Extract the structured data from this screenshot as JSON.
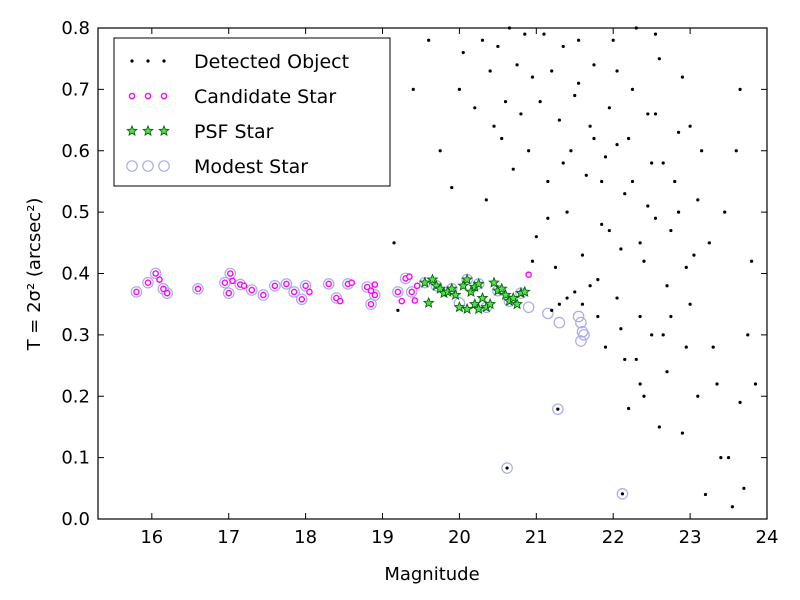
{
  "chart_data": {
    "type": "scatter",
    "xlabel": "Magnitude",
    "ylabel": "T = 2σ² (arcsec²)",
    "xlim": [
      15.3,
      24.0
    ],
    "ylim": [
      0.0,
      0.8
    ],
    "xticks": [
      16,
      17,
      18,
      19,
      20,
      21,
      22,
      23,
      24
    ],
    "yticks": [
      0.0,
      0.1,
      0.2,
      0.3,
      0.4,
      0.5,
      0.6,
      0.7,
      0.8
    ],
    "legend_position": "top-left",
    "grid": false,
    "series": [
      {
        "name": "Detected Object",
        "marker": "dot",
        "color": "#000000",
        "points": [
          [
            19.15,
            0.45
          ],
          [
            19.2,
            0.34
          ],
          [
            19.4,
            0.7
          ],
          [
            19.6,
            0.78
          ],
          [
            19.75,
            0.6
          ],
          [
            19.9,
            0.54
          ],
          [
            20.0,
            0.7
          ],
          [
            20.05,
            0.76
          ],
          [
            20.2,
            0.67
          ],
          [
            20.3,
            0.78
          ],
          [
            20.35,
            0.52
          ],
          [
            20.4,
            0.73
          ],
          [
            20.45,
            0.64
          ],
          [
            20.5,
            0.77
          ],
          [
            20.55,
            0.62
          ],
          [
            20.6,
            0.68
          ],
          [
            20.65,
            0.8
          ],
          [
            20.7,
            0.57
          ],
          [
            20.75,
            0.74
          ],
          [
            20.8,
            0.66
          ],
          [
            20.85,
            0.79
          ],
          [
            20.9,
            0.6
          ],
          [
            20.95,
            0.72
          ],
          [
            21.0,
            0.46
          ],
          [
            21.05,
            0.68
          ],
          [
            21.1,
            0.79
          ],
          [
            21.15,
            0.55
          ],
          [
            21.2,
            0.73
          ],
          [
            21.25,
            0.41
          ],
          [
            21.3,
            0.65
          ],
          [
            21.35,
            0.77
          ],
          [
            21.4,
            0.5
          ],
          [
            21.45,
            0.6
          ],
          [
            21.5,
            0.69
          ],
          [
            21.55,
            0.78
          ],
          [
            21.6,
            0.43
          ],
          [
            21.65,
            0.56
          ],
          [
            21.7,
            0.64
          ],
          [
            21.75,
            0.74
          ],
          [
            21.8,
            0.39
          ],
          [
            21.85,
            0.48
          ],
          [
            21.9,
            0.59
          ],
          [
            21.95,
            0.67
          ],
          [
            22.0,
            0.78
          ],
          [
            22.05,
            0.36
          ],
          [
            22.1,
            0.44
          ],
          [
            22.15,
            0.53
          ],
          [
            22.2,
            0.62
          ],
          [
            22.25,
            0.7
          ],
          [
            22.3,
            0.8
          ],
          [
            22.35,
            0.33
          ],
          [
            22.4,
            0.42
          ],
          [
            22.45,
            0.51
          ],
          [
            22.5,
            0.58
          ],
          [
            22.55,
            0.66
          ],
          [
            22.6,
            0.75
          ],
          [
            22.65,
            0.3
          ],
          [
            22.7,
            0.38
          ],
          [
            22.75,
            0.47
          ],
          [
            22.8,
            0.55
          ],
          [
            22.85,
            0.63
          ],
          [
            22.9,
            0.72
          ],
          [
            22.95,
            0.28
          ],
          [
            23.0,
            0.35
          ],
          [
            23.05,
            0.43
          ],
          [
            23.1,
            0.52
          ],
          [
            23.15,
            0.6
          ],
          [
            22.2,
            0.18
          ],
          [
            22.6,
            0.15
          ],
          [
            22.9,
            0.14
          ],
          [
            23.1,
            0.2
          ],
          [
            23.35,
            0.22
          ],
          [
            23.4,
            0.1
          ],
          [
            23.5,
            0.1
          ],
          [
            23.55,
            0.02
          ],
          [
            23.65,
            0.19
          ],
          [
            23.7,
            0.05
          ],
          [
            23.85,
            0.22
          ],
          [
            23.8,
            0.42
          ],
          [
            23.65,
            0.7
          ],
          [
            23.75,
            0.3
          ],
          [
            23.3,
            0.28
          ],
          [
            23.6,
            0.6
          ],
          [
            23.2,
            0.04
          ],
          [
            21.9,
            0.28
          ],
          [
            22.1,
            0.31
          ],
          [
            22.3,
            0.26
          ],
          [
            22.5,
            0.3
          ],
          [
            22.7,
            0.24
          ],
          [
            22.4,
            0.2
          ],
          [
            21.6,
            0.35
          ],
          [
            21.7,
            0.38
          ],
          [
            21.8,
            0.33
          ],
          [
            21.5,
            0.37
          ],
          [
            21.4,
            0.36
          ],
          [
            21.3,
            0.35
          ],
          [
            21.2,
            0.34
          ],
          [
            21.95,
            0.47
          ],
          [
            22.25,
            0.55
          ],
          [
            22.45,
            0.66
          ],
          [
            22.65,
            0.58
          ],
          [
            22.85,
            0.5
          ],
          [
            21.75,
            0.62
          ],
          [
            21.55,
            0.71
          ],
          [
            21.35,
            0.58
          ],
          [
            21.15,
            0.49
          ],
          [
            20.95,
            0.42
          ],
          [
            22.05,
            0.73
          ],
          [
            22.55,
            0.79
          ],
          [
            23.0,
            0.64
          ],
          [
            23.25,
            0.45
          ],
          [
            23.45,
            0.5
          ],
          [
            22.15,
            0.26
          ],
          [
            22.35,
            0.22
          ],
          [
            22.75,
            0.33
          ],
          [
            22.95,
            0.41
          ],
          [
            21.85,
            0.55
          ],
          [
            22.05,
            0.61
          ],
          [
            22.35,
            0.45
          ],
          [
            22.55,
            0.49
          ],
          [
            20.62,
            0.083
          ],
          [
            22.12,
            0.041
          ],
          [
            21.28,
            0.179
          ]
        ]
      },
      {
        "name": "Candidate Star",
        "marker": "small-circle",
        "color": "#ff00ff",
        "points": [
          [
            15.8,
            0.37
          ],
          [
            15.95,
            0.385
          ],
          [
            16.05,
            0.4
          ],
          [
            16.1,
            0.39
          ],
          [
            16.15,
            0.375
          ],
          [
            16.2,
            0.368
          ],
          [
            16.6,
            0.375
          ],
          [
            16.95,
            0.385
          ],
          [
            17.0,
            0.368
          ],
          [
            17.02,
            0.4
          ],
          [
            17.05,
            0.388
          ],
          [
            17.15,
            0.382
          ],
          [
            17.2,
            0.38
          ],
          [
            17.3,
            0.373
          ],
          [
            17.45,
            0.365
          ],
          [
            17.6,
            0.38
          ],
          [
            17.75,
            0.383
          ],
          [
            17.85,
            0.37
          ],
          [
            17.95,
            0.358
          ],
          [
            18.0,
            0.38
          ],
          [
            18.05,
            0.37
          ],
          [
            18.3,
            0.383
          ],
          [
            18.4,
            0.36
          ],
          [
            18.45,
            0.355
          ],
          [
            18.55,
            0.383
          ],
          [
            18.6,
            0.385
          ],
          [
            18.8,
            0.378
          ],
          [
            18.85,
            0.372
          ],
          [
            18.9,
            0.382
          ],
          [
            18.9,
            0.365
          ],
          [
            18.85,
            0.35
          ],
          [
            19.2,
            0.37
          ],
          [
            19.25,
            0.355
          ],
          [
            19.3,
            0.392
          ],
          [
            19.35,
            0.395
          ],
          [
            19.38,
            0.37
          ],
          [
            19.42,
            0.356
          ],
          [
            19.45,
            0.38
          ],
          [
            20.9,
            0.398
          ]
        ]
      },
      {
        "name": "PSF Star",
        "marker": "star",
        "color": "#22aa22",
        "points": [
          [
            19.55,
            0.385
          ],
          [
            19.6,
            0.352
          ],
          [
            19.65,
            0.39
          ],
          [
            19.7,
            0.38
          ],
          [
            19.75,
            0.375
          ],
          [
            19.8,
            0.368
          ],
          [
            19.85,
            0.37
          ],
          [
            19.9,
            0.375
          ],
          [
            19.95,
            0.365
          ],
          [
            20.0,
            0.345
          ],
          [
            20.05,
            0.38
          ],
          [
            20.1,
            0.39
          ],
          [
            20.15,
            0.37
          ],
          [
            20.2,
            0.378
          ],
          [
            20.25,
            0.383
          ],
          [
            20.3,
            0.36
          ],
          [
            20.35,
            0.345
          ],
          [
            20.4,
            0.35
          ],
          [
            20.45,
            0.385
          ],
          [
            20.5,
            0.372
          ],
          [
            20.55,
            0.375
          ],
          [
            20.6,
            0.365
          ],
          [
            20.65,
            0.355
          ],
          [
            20.7,
            0.36
          ],
          [
            20.75,
            0.35
          ],
          [
            20.8,
            0.368
          ],
          [
            20.85,
            0.37
          ],
          [
            20.2,
            0.35
          ],
          [
            20.25,
            0.342
          ],
          [
            20.1,
            0.342
          ]
        ]
      },
      {
        "name": "Modest Star",
        "marker": "open-circle",
        "color": "#aaaaee",
        "points": [
          [
            15.8,
            0.37
          ],
          [
            15.95,
            0.385
          ],
          [
            16.05,
            0.4
          ],
          [
            16.15,
            0.375
          ],
          [
            16.2,
            0.368
          ],
          [
            16.6,
            0.375
          ],
          [
            16.95,
            0.385
          ],
          [
            17.0,
            0.368
          ],
          [
            17.02,
            0.4
          ],
          [
            17.15,
            0.382
          ],
          [
            17.3,
            0.373
          ],
          [
            17.45,
            0.365
          ],
          [
            17.6,
            0.38
          ],
          [
            17.75,
            0.383
          ],
          [
            17.85,
            0.37
          ],
          [
            17.95,
            0.358
          ],
          [
            18.0,
            0.38
          ],
          [
            18.3,
            0.383
          ],
          [
            18.4,
            0.36
          ],
          [
            18.55,
            0.383
          ],
          [
            18.8,
            0.378
          ],
          [
            18.9,
            0.365
          ],
          [
            18.85,
            0.35
          ],
          [
            19.2,
            0.37
          ],
          [
            19.3,
            0.392
          ],
          [
            19.38,
            0.37
          ],
          [
            19.55,
            0.385
          ],
          [
            19.7,
            0.38
          ],
          [
            19.9,
            0.375
          ],
          [
            20.0,
            0.352
          ],
          [
            20.1,
            0.39
          ],
          [
            20.25,
            0.383
          ],
          [
            20.35,
            0.345
          ],
          [
            20.5,
            0.372
          ],
          [
            20.65,
            0.355
          ],
          [
            20.8,
            0.368
          ],
          [
            20.9,
            0.345
          ],
          [
            21.15,
            0.335
          ],
          [
            21.3,
            0.32
          ],
          [
            21.55,
            0.33
          ],
          [
            21.58,
            0.32
          ],
          [
            21.6,
            0.305
          ],
          [
            21.62,
            0.3
          ],
          [
            21.58,
            0.29
          ],
          [
            20.62,
            0.083
          ],
          [
            22.12,
            0.041
          ],
          [
            21.28,
            0.179
          ]
        ]
      }
    ]
  }
}
